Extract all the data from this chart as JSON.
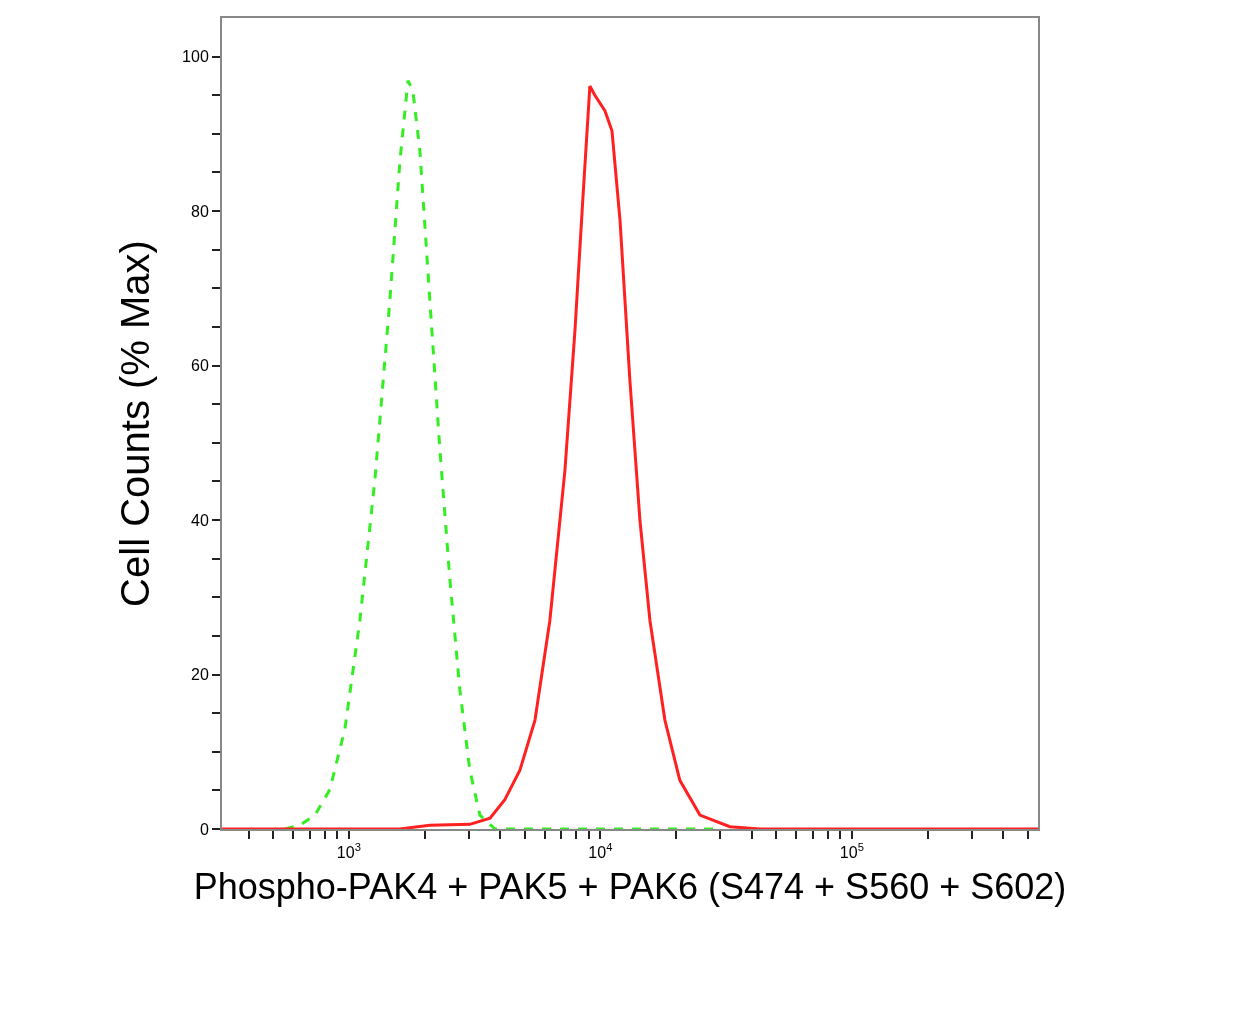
{
  "chart_data": {
    "type": "line",
    "xlabel": "Phospho-PAK4 + PAK5 + PAK6 (S474 + S560 + S602)",
    "ylabel": "Cell Counts (% Max)",
    "log": "x",
    "xlim": [
      313,
      549500
    ],
    "xticks": [
      {
        "value": 400,
        "label": null
      },
      {
        "value": 500,
        "label": null
      },
      {
        "value": 600,
        "label": null
      },
      {
        "value": 700,
        "label": null
      },
      {
        "value": 800,
        "label": null
      },
      {
        "value": 900,
        "label": null
      },
      {
        "value": 1000,
        "label": "10$^{3}$"
      },
      {
        "value": 2000,
        "label": null
      },
      {
        "value": 3000,
        "label": null
      },
      {
        "value": 4000,
        "label": null
      },
      {
        "value": 5000,
        "label": null
      },
      {
        "value": 6000,
        "label": null
      },
      {
        "value": 7000,
        "label": null
      },
      {
        "value": 8000,
        "label": null
      },
      {
        "value": 9000,
        "label": null
      },
      {
        "value": 10000,
        "label": "10$^{4}$"
      },
      {
        "value": 20000,
        "label": null
      },
      {
        "value": 30000,
        "label": null
      },
      {
        "value": 40000,
        "label": null
      },
      {
        "value": 50000,
        "label": null
      },
      {
        "value": 60000,
        "label": null
      },
      {
        "value": 70000,
        "label": null
      },
      {
        "value": 80000,
        "label": null
      },
      {
        "value": 90000,
        "label": null
      },
      {
        "value": 100000,
        "label": "10$^{5}$"
      },
      {
        "value": 200000,
        "label": null
      },
      {
        "value": 300000,
        "label": null
      },
      {
        "value": 400000,
        "label": null
      },
      {
        "value": 500000,
        "label": null
      }
    ],
    "ylim": [
      0,
      105
    ],
    "yticks": [
      0,
      {
        "value": 5,
        "label": null
      },
      {
        "value": 10,
        "label": null
      },
      {
        "value": 15,
        "label": null
      },
      20,
      {
        "value": 25,
        "label": null
      },
      {
        "value": 30,
        "label": null
      },
      {
        "value": 35,
        "label": null
      },
      40,
      {
        "value": 45,
        "label": null
      },
      {
        "value": 50,
        "label": null
      },
      {
        "value": 55,
        "label": null
      },
      60,
      {
        "value": 65,
        "label": null
      },
      {
        "value": 70,
        "label": null
      },
      {
        "value": 75,
        "label": null
      },
      80,
      {
        "value": 85,
        "label": null
      },
      {
        "value": 90,
        "label": null
      },
      {
        "value": 95,
        "label": null
      },
      100
    ],
    "marker": "none",
    "series": [
      {
        "color": "#33ee22",
        "line_style": "dashed",
        "x": [
          557,
          638,
          733,
          840,
          964,
          1106,
          1268,
          1455,
          1596,
          1718,
          1796,
          1916,
          2099,
          2302,
          2523,
          2762,
          3027,
          3319,
          3811,
          4786,
          29850
        ],
        "values": [
          0,
          0.5,
          1.8,
          5.1,
          12.9,
          27.0,
          45.1,
          68.4,
          86.5,
          96.9,
          95.6,
          87.8,
          68.4,
          49.0,
          32.2,
          18.0,
          7.6,
          1.8,
          0,
          0,
          0
        ]
      },
      {
        "color": "#ff2020",
        "line_style": "solid",
        "x": [
          313,
          1596,
          2099,
          3027,
          3641,
          4169,
          4786,
          5495,
          6297,
          7226,
          7925,
          8511,
          9083,
          9506,
          10420,
          11120,
          11970,
          13100,
          14360,
          15740,
          18050,
          20700,
          24880,
          32730,
          43050,
          549500
        ],
        "values": [
          0,
          0,
          0.5,
          0.6,
          1.4,
          3.8,
          7.6,
          14.1,
          27.0,
          46.4,
          64.6,
          81.4,
          96.2,
          95.0,
          93.0,
          90.4,
          78.8,
          58.1,
          40.0,
          27.0,
          14.1,
          6.3,
          1.8,
          0.3,
          0,
          0
        ]
      }
    ]
  }
}
